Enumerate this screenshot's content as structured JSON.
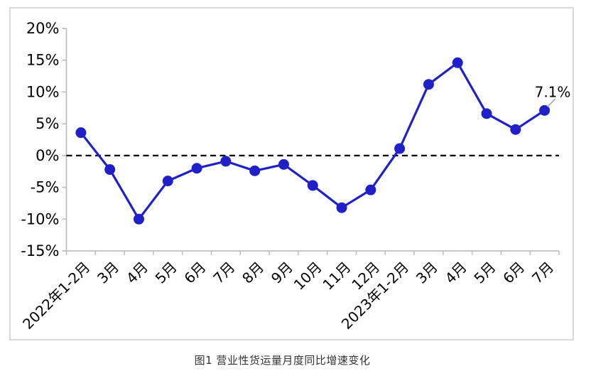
{
  "chart_data": {
    "type": "line",
    "categories": [
      "2022年1-2月",
      "3月",
      "4月",
      "5月",
      "6月",
      "7月",
      "8月",
      "9月",
      "10月",
      "11月",
      "12月",
      "2023年1-2月",
      "3月",
      "4月",
      "5月",
      "6月",
      "7月"
    ],
    "series": [
      {
        "name": "营业性货运量月度同比增速",
        "values": [
          3.6,
          -2.2,
          -10.0,
          -4.0,
          -2.0,
          -0.9,
          -2.4,
          -1.4,
          -4.7,
          -8.2,
          -5.4,
          1.1,
          11.2,
          14.6,
          6.6,
          4.1,
          7.1
        ]
      }
    ],
    "title": "",
    "caption": "图1 营业性货运量月度同比增速变化",
    "xlabel": "",
    "ylabel": "",
    "ylim": [
      -15,
      20
    ],
    "yticks": [
      20,
      15,
      10,
      5,
      0,
      -5,
      -10,
      -15
    ],
    "ytick_suffix": "%",
    "grid": false,
    "zero_line": true,
    "legend": "none",
    "annotation": {
      "text": "7.1%",
      "point_index": 16
    },
    "colors": {
      "line": "#2020c8",
      "marker": "#2020c8",
      "axis": "#bfbfbf",
      "zero_line": "#000000",
      "tick_label": "#000000",
      "annotation_text": "#000000",
      "annotation_leader": "#a6a6a6",
      "panel_border": "#d9d9d9",
      "background": "#ffffff"
    }
  },
  "caption": {
    "text": "图1 营业性货运量月度同比增速变化"
  }
}
